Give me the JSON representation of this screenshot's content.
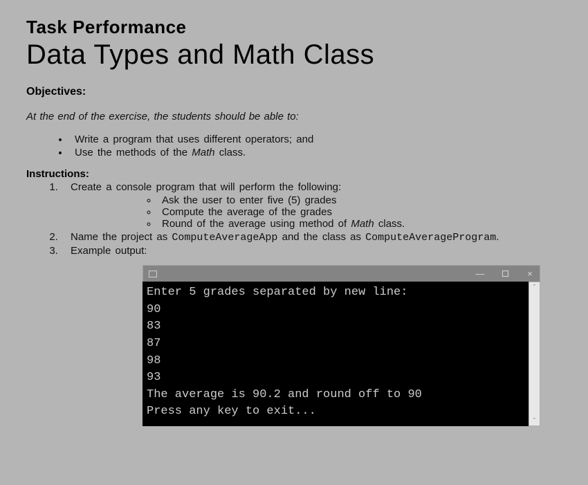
{
  "header": {
    "pretitle": "Task Performance",
    "title": "Data Types and Math Class"
  },
  "objectives": {
    "heading": "Objectives:",
    "intro": "At the end of the exercise, the students should be able to:",
    "items": [
      "Write a program that uses different operators; and",
      "Use the methods of the Math class."
    ],
    "math_word": "Math"
  },
  "instructions": {
    "heading": "Instructions:",
    "items": {
      "one": "Create a console program that will perform the following:",
      "one_sub": [
        "Ask the user to enter five (5) grades",
        "Compute the average of the grades",
        "Round of the average using method of Math class."
      ],
      "two_pre": "Name the project as ",
      "two_code1": "ComputeAverageApp",
      "two_mid": " and the class as ",
      "two_code2": "ComputeAverageProgram",
      "two_post": ".",
      "three": "Example output:"
    }
  },
  "console": {
    "lines": "Enter 5 grades separated by new line:\n90\n83\n87\n98\n93\nThe average is 90.2 and round off to 90\nPress any key to exit...",
    "min_label": "—",
    "close_label": "×"
  },
  "styling": {
    "page_bg": "#b5b5b5",
    "titlebar_bg": "#848484",
    "console_bg": "#000000",
    "console_fg": "#cccccc"
  }
}
